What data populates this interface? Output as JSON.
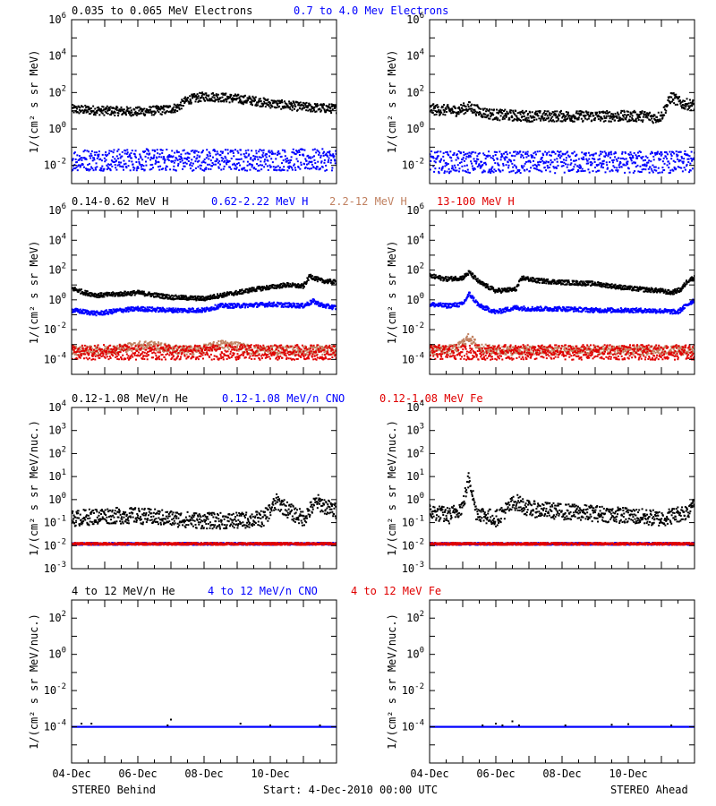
{
  "figure": {
    "footer_left": "STEREO Behind",
    "footer_center": "Start:  4-Dec-2010 00:00 UTC",
    "footer_right": "STEREO Ahead"
  },
  "chart_data": [
    {
      "type": "scatter",
      "name": "electrons",
      "legend": [
        {
          "label": "0.035 to 0.065 MeV Electrons",
          "color": "#000000"
        },
        {
          "label": "0.7 to 4.0 Mev Electrons",
          "color": "#0000ff"
        }
      ],
      "ylabel": "1/(cm² s sr MeV)",
      "yscale": "log",
      "ylim": [
        0.001,
        1000000
      ],
      "yticks": [
        {
          "v": 0.01,
          "e": "-2"
        },
        {
          "v": 1,
          "e": "0"
        },
        {
          "v": 100,
          "e": "2"
        },
        {
          "v": 10000,
          "e": "4"
        },
        {
          "v": 1000000,
          "e": "6"
        }
      ],
      "xlim": [
        "2010-12-04",
        "2010-12-12"
      ],
      "xticks": [
        "04-Dec",
        "06-Dec",
        "08-Dec",
        "10-Dec"
      ],
      "panels": {
        "behind": [
          {
            "color": "#000000",
            "x": [
              4.0,
              5.0,
              6.0,
              6.8,
              7.2,
              7.5,
              8.0,
              8.5,
              9.0,
              9.5,
              10.0,
              10.5,
              11.0,
              11.5,
              12.0
            ],
            "y": [
              12,
              10,
              9,
              11,
              15,
              40,
              60,
              55,
              45,
              35,
              25,
              20,
              16,
              14,
              13
            ],
            "scatter": 0.25
          },
          {
            "color": "#0000ff",
            "x": [
              4.0,
              6.0,
              8.0,
              10.0,
              12.0
            ],
            "y": [
              0.02,
              0.02,
              0.02,
              0.02,
              0.02
            ],
            "scatter": 0.6
          }
        ],
        "ahead": [
          {
            "color": "#000000",
            "x": [
              4.0,
              4.8,
              5.2,
              5.6,
              6.0,
              7.0,
              8.0,
              9.0,
              10.0,
              10.6,
              10.8,
              11.0,
              11.3,
              11.6,
              12.0
            ],
            "y": [
              12,
              10,
              16,
              8,
              6,
              5,
              5,
              5,
              5,
              5,
              4,
              5,
              60,
              25,
              20
            ],
            "scatter": 0.3
          },
          {
            "color": "#0000ff",
            "x": [
              4.0,
              6.0,
              8.0,
              10.0,
              12.0
            ],
            "y": [
              0.015,
              0.015,
              0.015,
              0.015,
              0.015
            ],
            "scatter": 0.6
          }
        ]
      }
    },
    {
      "type": "scatter",
      "name": "protons",
      "legend": [
        {
          "label": "0.14-0.62 MeV H",
          "color": "#000000"
        },
        {
          "label": "0.62-2.22 MeV H",
          "color": "#0000ff"
        },
        {
          "label": "2.2-12 MeV H",
          "color": "#c08060"
        },
        {
          "label": "13-100 MeV H",
          "color": "#e00000"
        }
      ],
      "ylabel": "1/(cm² s sr MeV)",
      "yscale": "log",
      "ylim": [
        1e-05,
        1000000
      ],
      "yticks": [
        {
          "v": 0.0001,
          "e": "-4"
        },
        {
          "v": 0.01,
          "e": "-2"
        },
        {
          "v": 1,
          "e": "0"
        },
        {
          "v": 100,
          "e": "2"
        },
        {
          "v": 10000,
          "e": "4"
        },
        {
          "v": 1000000,
          "e": "6"
        }
      ],
      "xlim": [
        "2010-12-04",
        "2010-12-12"
      ],
      "xticks": [
        "04-Dec",
        "06-Dec",
        "08-Dec",
        "10-Dec"
      ],
      "panels": {
        "behind": [
          {
            "color": "#000000",
            "x": [
              4.0,
              4.4,
              4.8,
              5.5,
              6.0,
              7.0,
              8.0,
              8.5,
              9.0,
              9.5,
              10.0,
              10.5,
              11.0,
              11.2,
              11.5,
              12.0
            ],
            "y": [
              6,
              3,
              2,
              2.5,
              3,
              1.5,
              1.2,
              2,
              3,
              5,
              7,
              10,
              8,
              40,
              20,
              15
            ],
            "scatter": 0.15
          },
          {
            "color": "#0000ff",
            "x": [
              4.0,
              4.8,
              5.5,
              6.0,
              7.0,
              8.0,
              8.5,
              9.0,
              10.0,
              11.0,
              11.3,
              11.6,
              12.0
            ],
            "y": [
              0.2,
              0.12,
              0.2,
              0.25,
              0.2,
              0.2,
              0.4,
              0.4,
              0.5,
              0.4,
              0.8,
              0.4,
              0.3
            ],
            "scatter": 0.15
          },
          {
            "color": "#c08060",
            "x": [
              4.0,
              5.0,
              6.0,
              6.3,
              7.0,
              7.5,
              8.0,
              8.5,
              9.0,
              9.5,
              10.0,
              11.0,
              12.0
            ],
            "y": [
              0.0004,
              0.0004,
              0.0008,
              0.001,
              0.0005,
              0.0004,
              0.0005,
              0.001,
              0.0008,
              0.0004,
              0.0004,
              0.0004,
              0.0004
            ],
            "scatter": 0.3
          },
          {
            "color": "#e00000",
            "x": [
              4.0,
              6.0,
              8.0,
              10.0,
              12.0
            ],
            "y": [
              0.0003,
              0.0003,
              0.0003,
              0.0003,
              0.0003
            ],
            "scatter": 0.5
          }
        ],
        "ahead": [
          {
            "color": "#000000",
            "x": [
              4.0,
              4.5,
              5.0,
              5.2,
              5.5,
              6.0,
              6.6,
              6.8,
              7.2,
              8.0,
              9.0,
              10.0,
              11.0,
              11.3,
              11.6,
              11.8,
              12.0
            ],
            "y": [
              40,
              25,
              30,
              70,
              15,
              4,
              5,
              30,
              20,
              15,
              12,
              6,
              4,
              3,
              5,
              20,
              30
            ],
            "scatter": 0.15
          },
          {
            "color": "#0000ff",
            "x": [
              4.0,
              4.5,
              5.0,
              5.2,
              5.5,
              6.0,
              6.6,
              7.0,
              8.0,
              9.0,
              10.0,
              11.0,
              11.5,
              11.8,
              12.0
            ],
            "y": [
              0.5,
              0.4,
              0.5,
              2.5,
              0.4,
              0.15,
              0.3,
              0.25,
              0.25,
              0.2,
              0.2,
              0.18,
              0.15,
              0.5,
              1
            ],
            "scatter": 0.15
          },
          {
            "color": "#c08060",
            "x": [
              4.0,
              4.8,
              5.2,
              5.5,
              6.0,
              8.0,
              10.0,
              12.0
            ],
            "y": [
              0.0004,
              0.0005,
              0.003,
              0.0006,
              0.0004,
              0.0004,
              0.0004,
              0.0004
            ],
            "scatter": 0.3
          },
          {
            "color": "#e00000",
            "x": [
              4.0,
              6.0,
              8.0,
              10.0,
              12.0
            ],
            "y": [
              0.0003,
              0.0003,
              0.0003,
              0.0003,
              0.0003
            ],
            "scatter": 0.5
          }
        ]
      }
    },
    {
      "type": "scatter",
      "name": "heavy-low",
      "legend": [
        {
          "label": "0.12-1.08 MeV/n He",
          "color": "#000000"
        },
        {
          "label": "0.12-1.08 MeV/n CNO",
          "color": "#0000ff"
        },
        {
          "label": "0.12-1.08 MeV Fe",
          "color": "#e00000"
        }
      ],
      "ylabel": "1/(cm² s sr MeV/nuc.)",
      "yscale": "log",
      "ylim": [
        0.001,
        10000
      ],
      "yticks": [
        {
          "v": 0.001,
          "e": "-3"
        },
        {
          "v": 0.01,
          "e": "-2"
        },
        {
          "v": 0.1,
          "e": "-1"
        },
        {
          "v": 1,
          "e": "0"
        },
        {
          "v": 10,
          "e": "1"
        },
        {
          "v": 100,
          "e": "2"
        },
        {
          "v": 1000,
          "e": "3"
        },
        {
          "v": 10000,
          "e": "4"
        }
      ],
      "xlim": [
        "2010-12-04",
        "2010-12-12"
      ],
      "xticks": [
        "04-Dec",
        "06-Dec",
        "08-Dec",
        "10-Dec"
      ],
      "panels": {
        "behind": [
          {
            "color": "#000000",
            "x": [
              4.0,
              5.0,
              6.0,
              7.0,
              8.0,
              9.0,
              9.8,
              10.2,
              10.6,
              11.0,
              11.4,
              11.8,
              12.0
            ],
            "y": [
              0.15,
              0.2,
              0.2,
              0.15,
              0.12,
              0.12,
              0.15,
              0.8,
              0.3,
              0.15,
              0.8,
              0.4,
              0.3
            ],
            "scatter": 0.35
          },
          {
            "color": "#0000ff",
            "x": [
              4.0,
              6.0,
              8.0,
              10.0,
              12.0
            ],
            "y": [
              0.012,
              0.012,
              0.012,
              0.012,
              0.012
            ],
            "scatter": 0.05
          },
          {
            "color": "#e00000",
            "x": [
              4.0,
              6.0,
              8.0,
              10.0,
              12.0
            ],
            "y": [
              0.012,
              0.012,
              0.012,
              0.012,
              0.012
            ],
            "scatter": 0.05
          }
        ],
        "ahead": [
          {
            "color": "#000000",
            "x": [
              4.0,
              4.6,
              5.0,
              5.2,
              5.4,
              5.7,
              6.0,
              6.6,
              7.0,
              8.0,
              9.0,
              10.0,
              11.0,
              11.8,
              12.0
            ],
            "y": [
              0.3,
              0.2,
              0.5,
              10,
              0.3,
              0.2,
              0.15,
              0.8,
              0.4,
              0.3,
              0.25,
              0.2,
              0.15,
              0.3,
              1.2
            ],
            "scatter": 0.35
          },
          {
            "color": "#0000ff",
            "x": [
              4.0,
              6.0,
              8.0,
              10.0,
              12.0
            ],
            "y": [
              0.012,
              0.012,
              0.012,
              0.012,
              0.012
            ],
            "scatter": 0.05
          },
          {
            "color": "#e00000",
            "x": [
              4.0,
              6.0,
              8.0,
              10.0,
              12.0
            ],
            "y": [
              0.012,
              0.012,
              0.012,
              0.012,
              0.012
            ],
            "scatter": 0.05
          }
        ]
      }
    },
    {
      "type": "scatter",
      "name": "heavy-high",
      "legend": [
        {
          "label": "4 to 12 MeV/n He",
          "color": "#000000"
        },
        {
          "label": "4 to 12 MeV/n CNO",
          "color": "#0000ff"
        },
        {
          "label": "4 to 12 MeV Fe",
          "color": "#e00000"
        }
      ],
      "ylabel": "1/(cm² s sr MeV/nuc.)",
      "yscale": "log",
      "ylim": [
        1e-06,
        1000
      ],
      "yticks": [
        {
          "v": 0.0001,
          "e": "-4"
        },
        {
          "v": 0.01,
          "e": "-2"
        },
        {
          "v": 1,
          "e": "0"
        },
        {
          "v": 100,
          "e": "2"
        }
      ],
      "xlim": [
        "2010-12-04",
        "2010-12-12"
      ],
      "xticks": [
        "04-Dec",
        "06-Dec",
        "08-Dec",
        "10-Dec"
      ],
      "panels": {
        "behind": [
          {
            "color": "#0000ff",
            "x": [
              4.0,
              6.0,
              8.0,
              10.0,
              12.0
            ],
            "y": [
              0.0001,
              0.0001,
              0.0001,
              0.0001,
              0.0001
            ],
            "scatter": 0.0
          },
          {
            "color": "#000000",
            "x": [
              4.3,
              4.6,
              6.9,
              7.0,
              9.1,
              10.0,
              11.5
            ],
            "y": [
              0.00015,
              0.00015,
              0.00012,
              0.00025,
              0.00015,
              0.00012,
              0.00012
            ],
            "sparse": true
          }
        ],
        "ahead": [
          {
            "color": "#0000ff",
            "x": [
              4.0,
              6.0,
              8.0,
              10.0,
              12.0
            ],
            "y": [
              0.0001,
              0.0001,
              0.0001,
              0.0001,
              0.0001
            ],
            "scatter": 0.0
          },
          {
            "color": "#000000",
            "x": [
              5.6,
              6.0,
              6.2,
              6.5,
              6.7,
              8.1,
              9.5,
              10.0,
              11.3
            ],
            "y": [
              0.00012,
              0.00015,
              0.00012,
              0.0002,
              0.00012,
              0.00012,
              0.00013,
              0.00014,
              0.00012
            ],
            "sparse": true
          }
        ]
      }
    }
  ]
}
